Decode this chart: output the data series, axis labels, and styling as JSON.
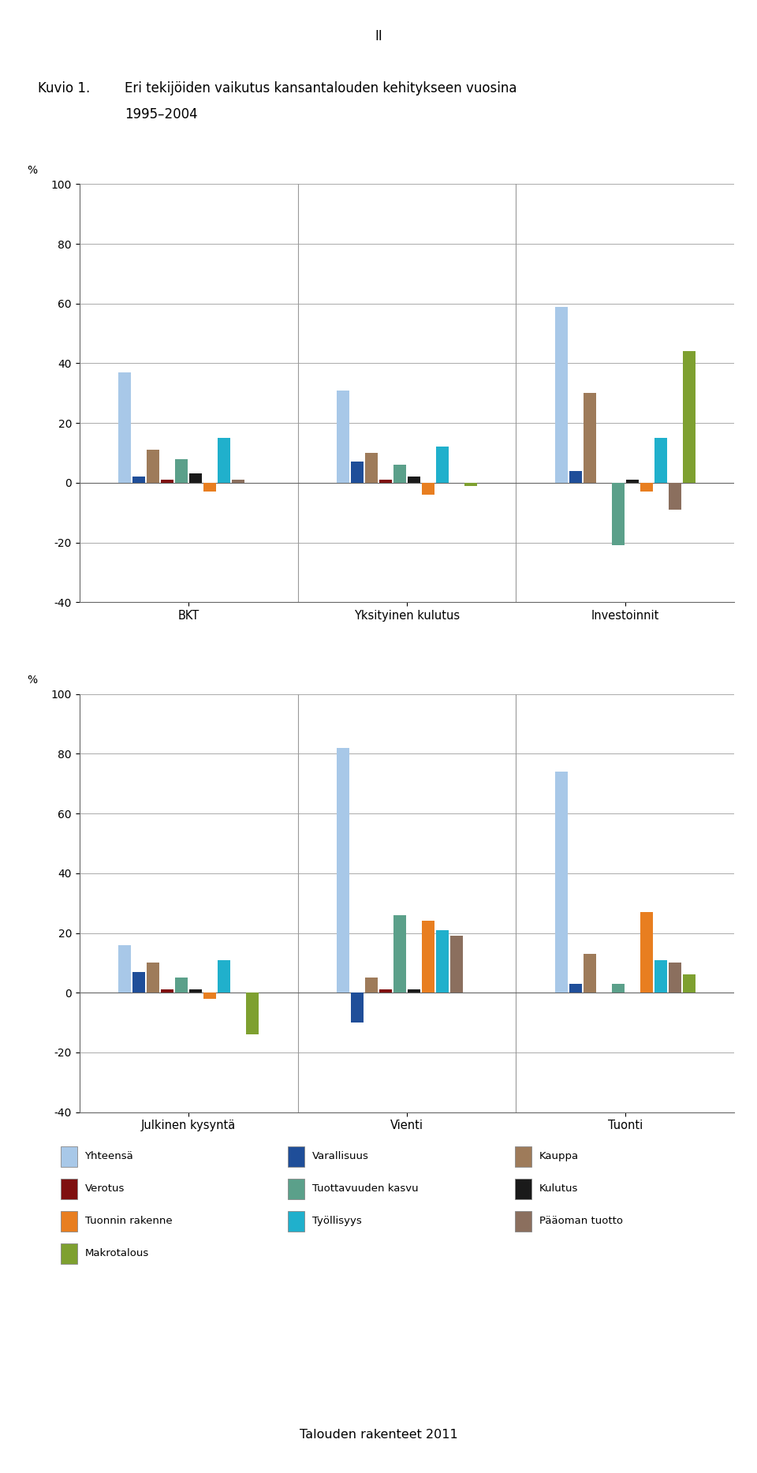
{
  "page_label": "II",
  "title_label": "Kuvio 1.",
  "title_text_line1": "Eri tekijöiden vaikutus kansantalouden kehitykseen vuosina",
  "title_text_line2": "1995–2004",
  "footer": "Talouden rakenteet 2011",
  "chart1": {
    "ylabel": "%",
    "ylim": [
      -40,
      100
    ],
    "yticks": [
      -40,
      -20,
      0,
      20,
      40,
      60,
      80,
      100
    ],
    "groups": [
      "BKT",
      "Yksityinen kulutus",
      "Investoinnit"
    ],
    "series": {
      "Yhteensä": [
        37,
        31,
        59
      ],
      "Varallisuus": [
        2,
        7,
        4
      ],
      "Kauppa": [
        11,
        10,
        30
      ],
      "Verotus": [
        1,
        1,
        0
      ],
      "Tuottavuuden kasvu": [
        8,
        6,
        -21
      ],
      "Kulutus": [
        3,
        2,
        1
      ],
      "Tuonnin rakenne": [
        -3,
        -4,
        -3
      ],
      "Työllisyys": [
        15,
        12,
        15
      ],
      "Pääoman tuotto": [
        1,
        0,
        -9
      ],
      "Makrotalous": [
        0,
        -1,
        44
      ]
    }
  },
  "chart2": {
    "ylabel": "%",
    "ylim": [
      -40,
      100
    ],
    "yticks": [
      -40,
      -20,
      0,
      20,
      40,
      60,
      80,
      100
    ],
    "groups": [
      "Julkinen kysyntä",
      "Vienti",
      "Tuonti"
    ],
    "series": {
      "Yhteensä": [
        16,
        82,
        74
      ],
      "Varallisuus": [
        7,
        -10,
        3
      ],
      "Kauppa": [
        10,
        5,
        13
      ],
      "Verotus": [
        1,
        1,
        0
      ],
      "Tuottavuuden kasvu": [
        5,
        26,
        3
      ],
      "Kulutus": [
        1,
        1,
        0
      ],
      "Tuonnin rakenne": [
        -2,
        24,
        27
      ],
      "Työllisyys": [
        11,
        21,
        11
      ],
      "Pääoman tuotto": [
        0,
        19,
        10
      ],
      "Makrotalous": [
        -14,
        0,
        6
      ]
    }
  },
  "colors": {
    "Yhteensä": "#a8c8e8",
    "Varallisuus": "#1f4e99",
    "Kauppa": "#9e7b5a",
    "Verotus": "#7f1010",
    "Tuottavuuden kasvu": "#5ba08a",
    "Kulutus": "#1a1a1a",
    "Tuonnin rakenne": "#e87e20",
    "Työllisyys": "#20b0cc",
    "Pääoman tuotto": "#8b6f5e",
    "Makrotalous": "#7ea030"
  },
  "legend_cols": [
    [
      "Yhteensä",
      "Verotus",
      "Tuonnin rakenne",
      "Makrotalous"
    ],
    [
      "Varallisuus",
      "Tuottavuuden kasvu",
      "Työllisyys"
    ],
    [
      "Kauppa",
      "Kulutus",
      "Pääoman tuotto"
    ]
  ]
}
